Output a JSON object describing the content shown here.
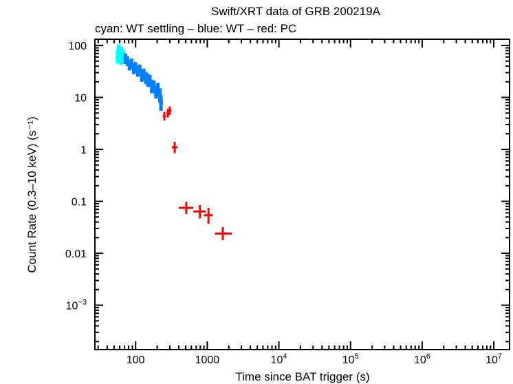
{
  "chart_data": {
    "type": "scatter",
    "title": "Swift/XRT data of GRB 200219A",
    "subtitle": "cyan: WT settling – blue: WT – red: PC",
    "xlabel": "Time since BAT trigger (s)",
    "ylabel": "Count Rate (0.3–10 keV) (s⁻¹)",
    "xscale": "log",
    "yscale": "log",
    "xlim": [
      27,
      16600000
    ],
    "ylim": [
      0.00014,
      132
    ],
    "grid": false,
    "x_ticks": [
      {
        "value": 100,
        "label": "100"
      },
      {
        "value": 1000,
        "label": "1000"
      },
      {
        "value": 10000,
        "label": "10^4"
      },
      {
        "value": 100000,
        "label": "10^5"
      },
      {
        "value": 1000000,
        "label": "10^6"
      },
      {
        "value": 10000000,
        "label": "10^7"
      }
    ],
    "y_ticks": [
      {
        "value": 100,
        "label": "100"
      },
      {
        "value": 10,
        "label": "10"
      },
      {
        "value": 1,
        "label": "1"
      },
      {
        "value": 0.1,
        "label": "0.1"
      },
      {
        "value": 0.01,
        "label": "0.01"
      },
      {
        "value": 0.001,
        "label": "10^−3"
      }
    ],
    "series": [
      {
        "name": "WT settling",
        "color": "#00ffff",
        "points": [
          {
            "x": 56,
            "y": 60,
            "ylo": 45,
            "yhi": 80
          },
          {
            "x": 58,
            "y": 85,
            "ylo": 65,
            "yhi": 105
          },
          {
            "x": 60,
            "y": 70,
            "ylo": 52,
            "yhi": 92
          },
          {
            "x": 62,
            "y": 55,
            "ylo": 42,
            "yhi": 72
          },
          {
            "x": 64,
            "y": 75,
            "ylo": 58,
            "yhi": 95
          },
          {
            "x": 66,
            "y": 58,
            "ylo": 44,
            "yhi": 75
          },
          {
            "x": 68,
            "y": 62,
            "ylo": 47,
            "yhi": 80
          }
        ]
      },
      {
        "name": "WT",
        "color": "#0080ff",
        "points": [
          {
            "x": 72,
            "y": 55,
            "ylo": 44,
            "yhi": 70
          },
          {
            "x": 77,
            "y": 50,
            "ylo": 40,
            "yhi": 62
          },
          {
            "x": 82,
            "y": 42,
            "ylo": 33,
            "yhi": 53
          },
          {
            "x": 88,
            "y": 45,
            "ylo": 35,
            "yhi": 56
          },
          {
            "x": 94,
            "y": 36,
            "ylo": 28,
            "yhi": 45
          },
          {
            "x": 100,
            "y": 38,
            "ylo": 30,
            "yhi": 48
          },
          {
            "x": 107,
            "y": 32,
            "ylo": 25,
            "yhi": 40
          },
          {
            "x": 114,
            "y": 34,
            "ylo": 26,
            "yhi": 43
          },
          {
            "x": 122,
            "y": 27,
            "ylo": 20,
            "yhi": 34
          },
          {
            "x": 130,
            "y": 28,
            "ylo": 21,
            "yhi": 36
          },
          {
            "x": 139,
            "y": 24,
            "ylo": 18,
            "yhi": 31
          },
          {
            "x": 148,
            "y": 22,
            "ylo": 16,
            "yhi": 29
          },
          {
            "x": 158,
            "y": 21,
            "ylo": 16,
            "yhi": 27
          },
          {
            "x": 168,
            "y": 17,
            "ylo": 12,
            "yhi": 22
          },
          {
            "x": 180,
            "y": 16,
            "ylo": 12,
            "yhi": 21
          },
          {
            "x": 192,
            "y": 13,
            "ylo": 9.5,
            "yhi": 17
          },
          {
            "x": 205,
            "y": 14,
            "ylo": 10,
            "yhi": 19
          },
          {
            "x": 218,
            "y": 11,
            "ylo": 8,
            "yhi": 15
          },
          {
            "x": 226,
            "y": 8,
            "ylo": 5.5,
            "yhi": 11
          }
        ]
      },
      {
        "name": "PC",
        "color": "#ff0000",
        "points": [
          {
            "x": 252,
            "xlo": 240,
            "xhi": 265,
            "y": 4.4,
            "ylo": 3.6,
            "yhi": 5.3
          },
          {
            "x": 282,
            "xlo": 268,
            "xhi": 296,
            "y": 5.0,
            "ylo": 4.1,
            "yhi": 6.0
          },
          {
            "x": 300,
            "xlo": 290,
            "xhi": 315,
            "y": 5.6,
            "ylo": 4.6,
            "yhi": 6.7
          },
          {
            "x": 351,
            "xlo": 320,
            "xhi": 385,
            "y": 1.1,
            "ylo": 0.85,
            "yhi": 1.4
          },
          {
            "x": 510,
            "xlo": 400,
            "xhi": 640,
            "y": 0.075,
            "ylo": 0.057,
            "yhi": 0.098
          },
          {
            "x": 790,
            "xlo": 640,
            "xhi": 950,
            "y": 0.064,
            "ylo": 0.047,
            "yhi": 0.085
          },
          {
            "x": 1040,
            "xlo": 900,
            "xhi": 1200,
            "y": 0.054,
            "ylo": 0.037,
            "yhi": 0.075
          },
          {
            "x": 1650,
            "xlo": 1280,
            "xhi": 2200,
            "y": 0.024,
            "ylo": 0.018,
            "yhi": 0.032
          }
        ]
      }
    ]
  }
}
